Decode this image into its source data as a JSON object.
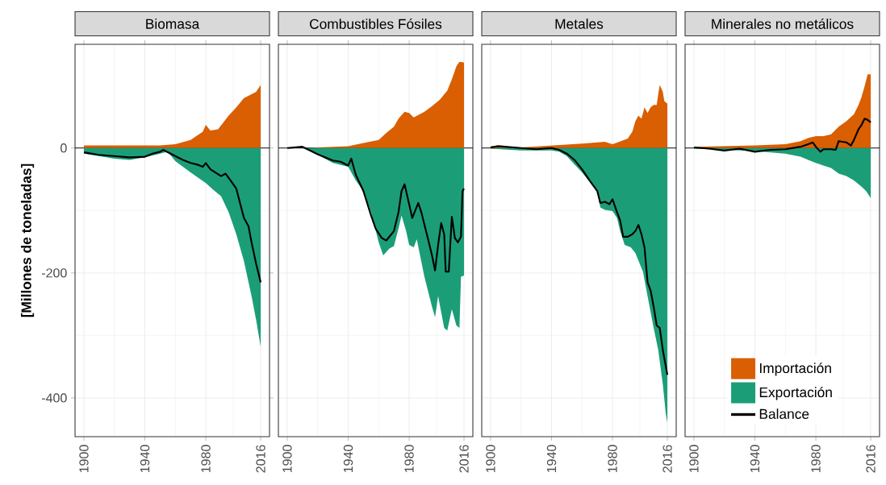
{
  "chart_data": [
    {
      "type": "area",
      "title": "Biomasa",
      "ylabel": "[Millones de toneladas]",
      "xlim": [
        1894.2,
        2021.8
      ],
      "ylim": [
        -462,
        166
      ],
      "xticks": [
        1900,
        1940,
        1980,
        2016
      ],
      "yticks": [
        -400,
        -200,
        0
      ],
      "grid": true,
      "ref_lines": [
        {
          "axis": "y",
          "value": 0,
          "color": "#000000"
        }
      ],
      "series": [
        {
          "color": "#d95f02",
          "x": [
            1900,
            1950,
            1960,
            1970,
            1978,
            1980,
            1983,
            1988,
            1995,
            2000,
            2005,
            2010,
            2013,
            2016
          ],
          "values": [
            4,
            4,
            6,
            13,
            26,
            37,
            28,
            30,
            52,
            65,
            80,
            86,
            90,
            101
          ]
        },
        {
          "color": "#1b9e77",
          "x": [
            1900,
            1910,
            1920,
            1930,
            1940,
            1950,
            1955,
            1960,
            1970,
            1980,
            1985,
            1990,
            1995,
            2000,
            2005,
            2010,
            2013,
            2016
          ],
          "values": [
            -9,
            -13,
            -17,
            -19,
            -15,
            -9,
            -6,
            -21,
            -39,
            -56,
            -67,
            -77,
            -103,
            -138,
            -181,
            -237,
            -275,
            -318
          ]
        },
        {
          "type": "line",
          "color": "#000000",
          "x": [
            1900,
            1910,
            1920,
            1930,
            1940,
            1945,
            1950,
            1952,
            1960,
            1965,
            1970,
            1975,
            1978,
            1980,
            1983,
            1990,
            1993,
            1998,
            2000,
            2005,
            2008,
            2010,
            2013,
            2016
          ],
          "values": [
            -7,
            -11,
            -13,
            -15,
            -14,
            -9,
            -6,
            -3,
            -13,
            -19,
            -24,
            -27,
            -30,
            -24,
            -34,
            -45,
            -41,
            -58,
            -65,
            -112,
            -125,
            -151,
            -185,
            -215
          ]
        }
      ]
    },
    {
      "type": "area",
      "title": "Combustibles Fósiles",
      "xlim": [
        1894.2,
        2021.8
      ],
      "ylim": [
        -462,
        166
      ],
      "xticks": [
        1900,
        1940,
        1980,
        2016
      ],
      "yticks": [
        -400,
        -200,
        0
      ],
      "grid": true,
      "tick_labels": "x",
      "ref_lines": [
        {
          "axis": "y",
          "value": 0,
          "color": "#000000"
        }
      ],
      "series": [
        {
          "color": "#d95f02",
          "x": [
            1900,
            1915,
            1920,
            1940,
            1950,
            1960,
            1965,
            1970,
            1973,
            1977,
            1980,
            1983,
            1990,
            1995,
            2000,
            2005,
            2008,
            2011,
            2013,
            2016
          ],
          "values": [
            0,
            0,
            1,
            3,
            8,
            13,
            24,
            34,
            47,
            58,
            56,
            49,
            58,
            67,
            77,
            92,
            110,
            131,
            138,
            137
          ]
        },
        {
          "color": "#1b9e77",
          "x": [
            1900,
            1910,
            1920,
            1930,
            1940,
            1945,
            1950,
            1955,
            1960,
            1963,
            1967,
            1970,
            1973,
            1975,
            1978,
            1980,
            1983,
            1985,
            1990,
            1995,
            1997,
            1999,
            2003,
            2005,
            2008,
            2011,
            2013,
            2014,
            2016
          ],
          "values": [
            0,
            0,
            -11,
            -24,
            -30,
            -52,
            -69,
            -103,
            -151,
            -172,
            -161,
            -157,
            -129,
            -108,
            -133,
            -155,
            -159,
            -146,
            -206,
            -254,
            -271,
            -237,
            -288,
            -292,
            -258,
            -284,
            -288,
            -206,
            -204
          ]
        },
        {
          "type": "line",
          "color": "#000000",
          "x": [
            1900,
            1910,
            1920,
            1930,
            1935,
            1940,
            1942,
            1945,
            1950,
            1955,
            1958,
            1962,
            1965,
            1970,
            1973,
            1975,
            1977,
            1980,
            1982,
            1986,
            1988,
            1992,
            1995,
            1997,
            1999,
            2001,
            2003,
            2004,
            2006,
            2008,
            2010,
            2012,
            2014,
            2015,
            2016
          ],
          "values": [
            0,
            2,
            -10,
            -20,
            -22,
            -28,
            -17,
            -43,
            -69,
            -108,
            -129,
            -144,
            -148,
            -133,
            -103,
            -69,
            -58,
            -90,
            -112,
            -88,
            -103,
            -142,
            -172,
            -196,
            -155,
            -120,
            -138,
            -198,
            -198,
            -110,
            -144,
            -151,
            -142,
            -69,
            -65
          ]
        }
      ]
    },
    {
      "type": "area",
      "title": "Metales",
      "xlim": [
        1894.2,
        2021.8
      ],
      "ylim": [
        -462,
        166
      ],
      "xticks": [
        1900,
        1940,
        1980,
        2016
      ],
      "yticks": [
        -400,
        -200,
        0
      ],
      "grid": true,
      "tick_labels": "x",
      "ref_lines": [
        {
          "axis": "y",
          "value": 0,
          "color": "#000000"
        }
      ],
      "series": [
        {
          "color": "#d95f02",
          "x": [
            1900,
            1920,
            1940,
            1960,
            1975,
            1980,
            1990,
            1993,
            1995,
            1997,
            1999,
            2001,
            2003,
            2005,
            2007,
            2009,
            2010,
            2011,
            2013,
            2014,
            2016
          ],
          "values": [
            3,
            1,
            4,
            7,
            10,
            6,
            15,
            26,
            43,
            52,
            47,
            65,
            56,
            65,
            69,
            69,
            86,
            101,
            90,
            75,
            71
          ]
        },
        {
          "color": "#1b9e77",
          "x": [
            1900,
            1920,
            1940,
            1945,
            1950,
            1955,
            1960,
            1965,
            1970,
            1972,
            1975,
            1980,
            1983,
            1985,
            1988,
            1992,
            1995,
            2000,
            2003,
            2007,
            2010,
            2013,
            2015,
            2016
          ],
          "values": [
            -1,
            -4,
            -4,
            -6,
            -13,
            -26,
            -39,
            -54,
            -69,
            -95,
            -99,
            -101,
            -112,
            -133,
            -155,
            -159,
            -168,
            -198,
            -237,
            -288,
            -323,
            -378,
            -426,
            -439
          ]
        },
        {
          "type": "line",
          "color": "#000000",
          "x": [
            1900,
            1905,
            1920,
            1930,
            1940,
            1945,
            1950,
            1955,
            1960,
            1965,
            1970,
            1972,
            1975,
            1978,
            1980,
            1983,
            1985,
            1987,
            1990,
            1993,
            1995,
            1997,
            1999,
            2001,
            2003,
            2005,
            2007,
            2009,
            2011,
            2013,
            2016
          ],
          "values": [
            1,
            3,
            0,
            -2,
            0,
            -3,
            -9,
            -19,
            -34,
            -52,
            -69,
            -88,
            -86,
            -90,
            -82,
            -103,
            -116,
            -142,
            -142,
            -138,
            -133,
            -123,
            -138,
            -159,
            -215,
            -228,
            -254,
            -284,
            -288,
            -323,
            -363
          ]
        }
      ]
    },
    {
      "type": "area",
      "title": "Minerales no metálicos",
      "xlim": [
        1894.2,
        2021.8
      ],
      "ylim": [
        -462,
        166
      ],
      "xticks": [
        1900,
        1940,
        1980,
        2016
      ],
      "yticks": [
        -400,
        -200,
        0
      ],
      "grid": true,
      "tick_labels": "x",
      "legend": "bottom",
      "ref_lines": [
        {
          "axis": "y",
          "value": 0,
          "color": "#000000"
        }
      ],
      "series": [
        {
          "name": "Importación",
          "color": "#d95f02",
          "x": [
            1900,
            1920,
            1940,
            1960,
            1970,
            1975,
            1980,
            1985,
            1990,
            1995,
            2000,
            2005,
            2008,
            2010,
            2012,
            2014,
            2016
          ],
          "values": [
            2,
            3,
            4,
            6,
            11,
            16,
            19,
            19,
            22,
            34,
            43,
            54,
            69,
            82,
            99,
            118,
            118
          ]
        },
        {
          "name": "Exportación",
          "color": "#1b9e77",
          "x": [
            1900,
            1920,
            1940,
            1960,
            1970,
            1975,
            1980,
            1985,
            1990,
            1995,
            2000,
            2005,
            2010,
            2013,
            2016
          ],
          "values": [
            -1,
            -3,
            -5,
            -9,
            -14,
            -19,
            -24,
            -28,
            -32,
            -41,
            -45,
            -52,
            -62,
            -69,
            -80
          ]
        },
        {
          "name": "Balance",
          "type": "line",
          "color": "#000000",
          "x": [
            1900,
            1910,
            1920,
            1930,
            1940,
            1950,
            1960,
            1970,
            1975,
            1978,
            1980,
            1983,
            1985,
            1990,
            1993,
            1995,
            2000,
            2003,
            2005,
            2008,
            2010,
            2012,
            2014,
            2016
          ],
          "values": [
            1,
            -1,
            -4,
            -1,
            -6,
            -3,
            -2,
            2,
            6,
            9,
            2,
            -6,
            -2,
            -2,
            -3,
            11,
            9,
            4,
            13,
            30,
            37,
            47,
            45,
            41
          ]
        }
      ]
    }
  ]
}
